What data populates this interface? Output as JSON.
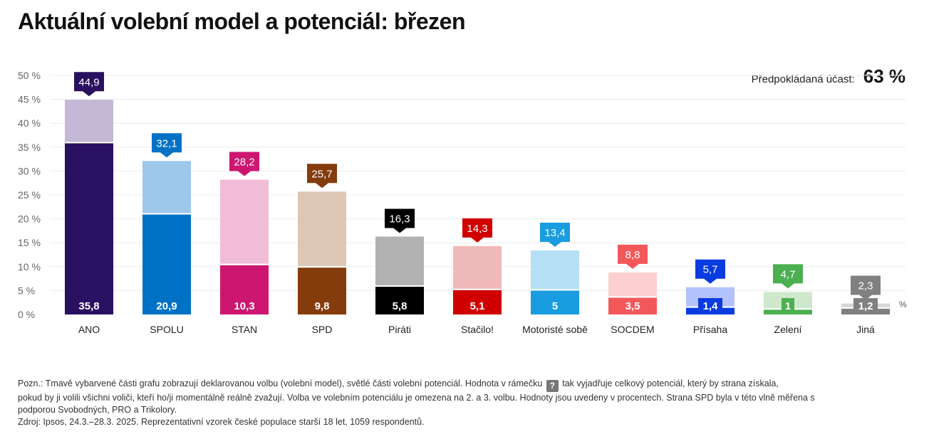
{
  "title": "Aktuální volební model a potenciál: březen",
  "turnout": {
    "label": "Předpokládaná účast:",
    "value": "63 %"
  },
  "unit_label": "%",
  "note": {
    "part1": "Pozn.: Tmavě vybarvené části grafu zobrazují deklarovanou volbu (volební model), světlé části volební potenciál. Hodnota v rámečku",
    "badge": "?",
    "part2": "tak vyjadřuje celkový potenciál, který by strana získala,",
    "line2": "pokud by ji volili všichni voliči, kteří ho/ji momentálně reálně zvažují. Volba ve volebním potenciálu je omezena na 2. a 3. volbu. Hodnoty jsou uvedeny v procentech. Strana SPD byla v této vlně měřena s",
    "line3": "podporou Svobodných, PRO a Trikolory.",
    "source": "Zdroj: Ipsos, 24.3.–28.3. 2025. Reprezentativní vzorek české populace starší 18 let, 1059 respondentů."
  },
  "chart_data": {
    "type": "bar",
    "stacked_overlay": true,
    "ylim": [
      0,
      50
    ],
    "yticks": [
      "0 %",
      "5 %",
      "10 %",
      "15 %",
      "20 %",
      "25 %",
      "30 %",
      "35 %",
      "40 %",
      "45 %",
      "50 %"
    ],
    "grid": true,
    "categories": [
      "ANO",
      "SPOLU",
      "STAN",
      "SPD",
      "Piráti",
      "Stačilo!",
      "Motoristé sobě",
      "SOCDEM",
      "Přísaha",
      "Zelení",
      "Jiná"
    ],
    "series": [
      {
        "values": [
          35.8,
          20.9,
          10.3,
          9.8,
          5.8,
          5.1,
          5,
          3.5,
          1.4,
          1,
          1.2
        ],
        "labels": [
          "35,8",
          "20,9",
          "10,3",
          "9,8",
          "5,8",
          "5,1",
          "5",
          "3,5",
          "1,4",
          "1",
          "1,2"
        ]
      },
      {
        "values": [
          44.9,
          32.1,
          28.2,
          25.7,
          16.3,
          14.3,
          13.4,
          8.8,
          5.7,
          4.7,
          2.3
        ],
        "labels": [
          "44,9",
          "32,1",
          "28,2",
          "25,7",
          "16,3",
          "14,3",
          "13,4",
          "8,8",
          "5,7",
          "4,7",
          "2,3"
        ]
      }
    ],
    "colors": {
      "dark": [
        "#2a1060",
        "#0072c6",
        "#cc1670",
        "#843c0c",
        "#000000",
        "#d00000",
        "#1a9ce0",
        "#f2585a",
        "#0a3be0",
        "#4caf50",
        "#808080"
      ],
      "light": [
        "#c3b8d6",
        "#9ec8ea",
        "#f0bcd8",
        "#dec7b6",
        "#b2b2b2",
        "#f0b9b9",
        "#b5e0f6",
        "#fcd0d0",
        "#b3c2fa",
        "#cfe8cc",
        "#d6d6d6"
      ]
    }
  }
}
